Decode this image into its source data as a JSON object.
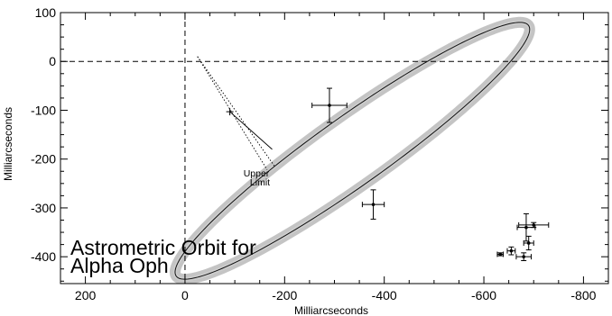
{
  "chart_data": {
    "type": "scatter",
    "title_lines": [
      "Astrometric Orbit for",
      "Alpha Oph"
    ],
    "xlabel": "Milliarcseconds",
    "ylabel": "Milliarcseconds",
    "xlim": [
      250,
      -850
    ],
    "ylim": [
      -455,
      100
    ],
    "x_ticks": [
      200,
      0,
      -200,
      -400,
      -600,
      -800
    ],
    "y_ticks": [
      100,
      0,
      -100,
      -200,
      -300,
      -400
    ],
    "x_tick_labels": [
      "200",
      "0",
      "-200",
      "-400",
      "-600",
      "-800"
    ],
    "y_tick_labels": [
      "100",
      "0",
      "-100",
      "-200",
      "-300",
      "-400"
    ],
    "grid": false,
    "reference_lines": {
      "x": 0,
      "y": 0,
      "style": "dashed"
    },
    "orbit": {
      "center_x": -336,
      "center_y": -183,
      "semi_major": 437,
      "semi_minor": 70,
      "angle_deg": 36,
      "band_width": 22
    },
    "points": [
      {
        "x": -290,
        "y": -90,
        "xerr": 35,
        "yerr": 35
      },
      {
        "x": -378,
        "y": -293,
        "xerr": 22,
        "yerr": 30
      },
      {
        "x": -633,
        "y": -395,
        "xerr": 6,
        "yerr": 3
      },
      {
        "x": -655,
        "y": -388,
        "xerr": 8,
        "yerr": 8
      },
      {
        "x": -680,
        "y": -400,
        "xerr": 15,
        "yerr": 8
      },
      {
        "x": -685,
        "y": -340,
        "xerr": 18,
        "yerr": 28
      },
      {
        "x": -690,
        "y": -372,
        "xerr": 10,
        "yerr": 14
      },
      {
        "x": -700,
        "y": -335,
        "xerr": 30,
        "yerr": 5
      }
    ],
    "upper_limit": {
      "label_lines": [
        "Upper",
        "Limit"
      ],
      "point": {
        "x": -90,
        "y": -103
      }
    }
  }
}
